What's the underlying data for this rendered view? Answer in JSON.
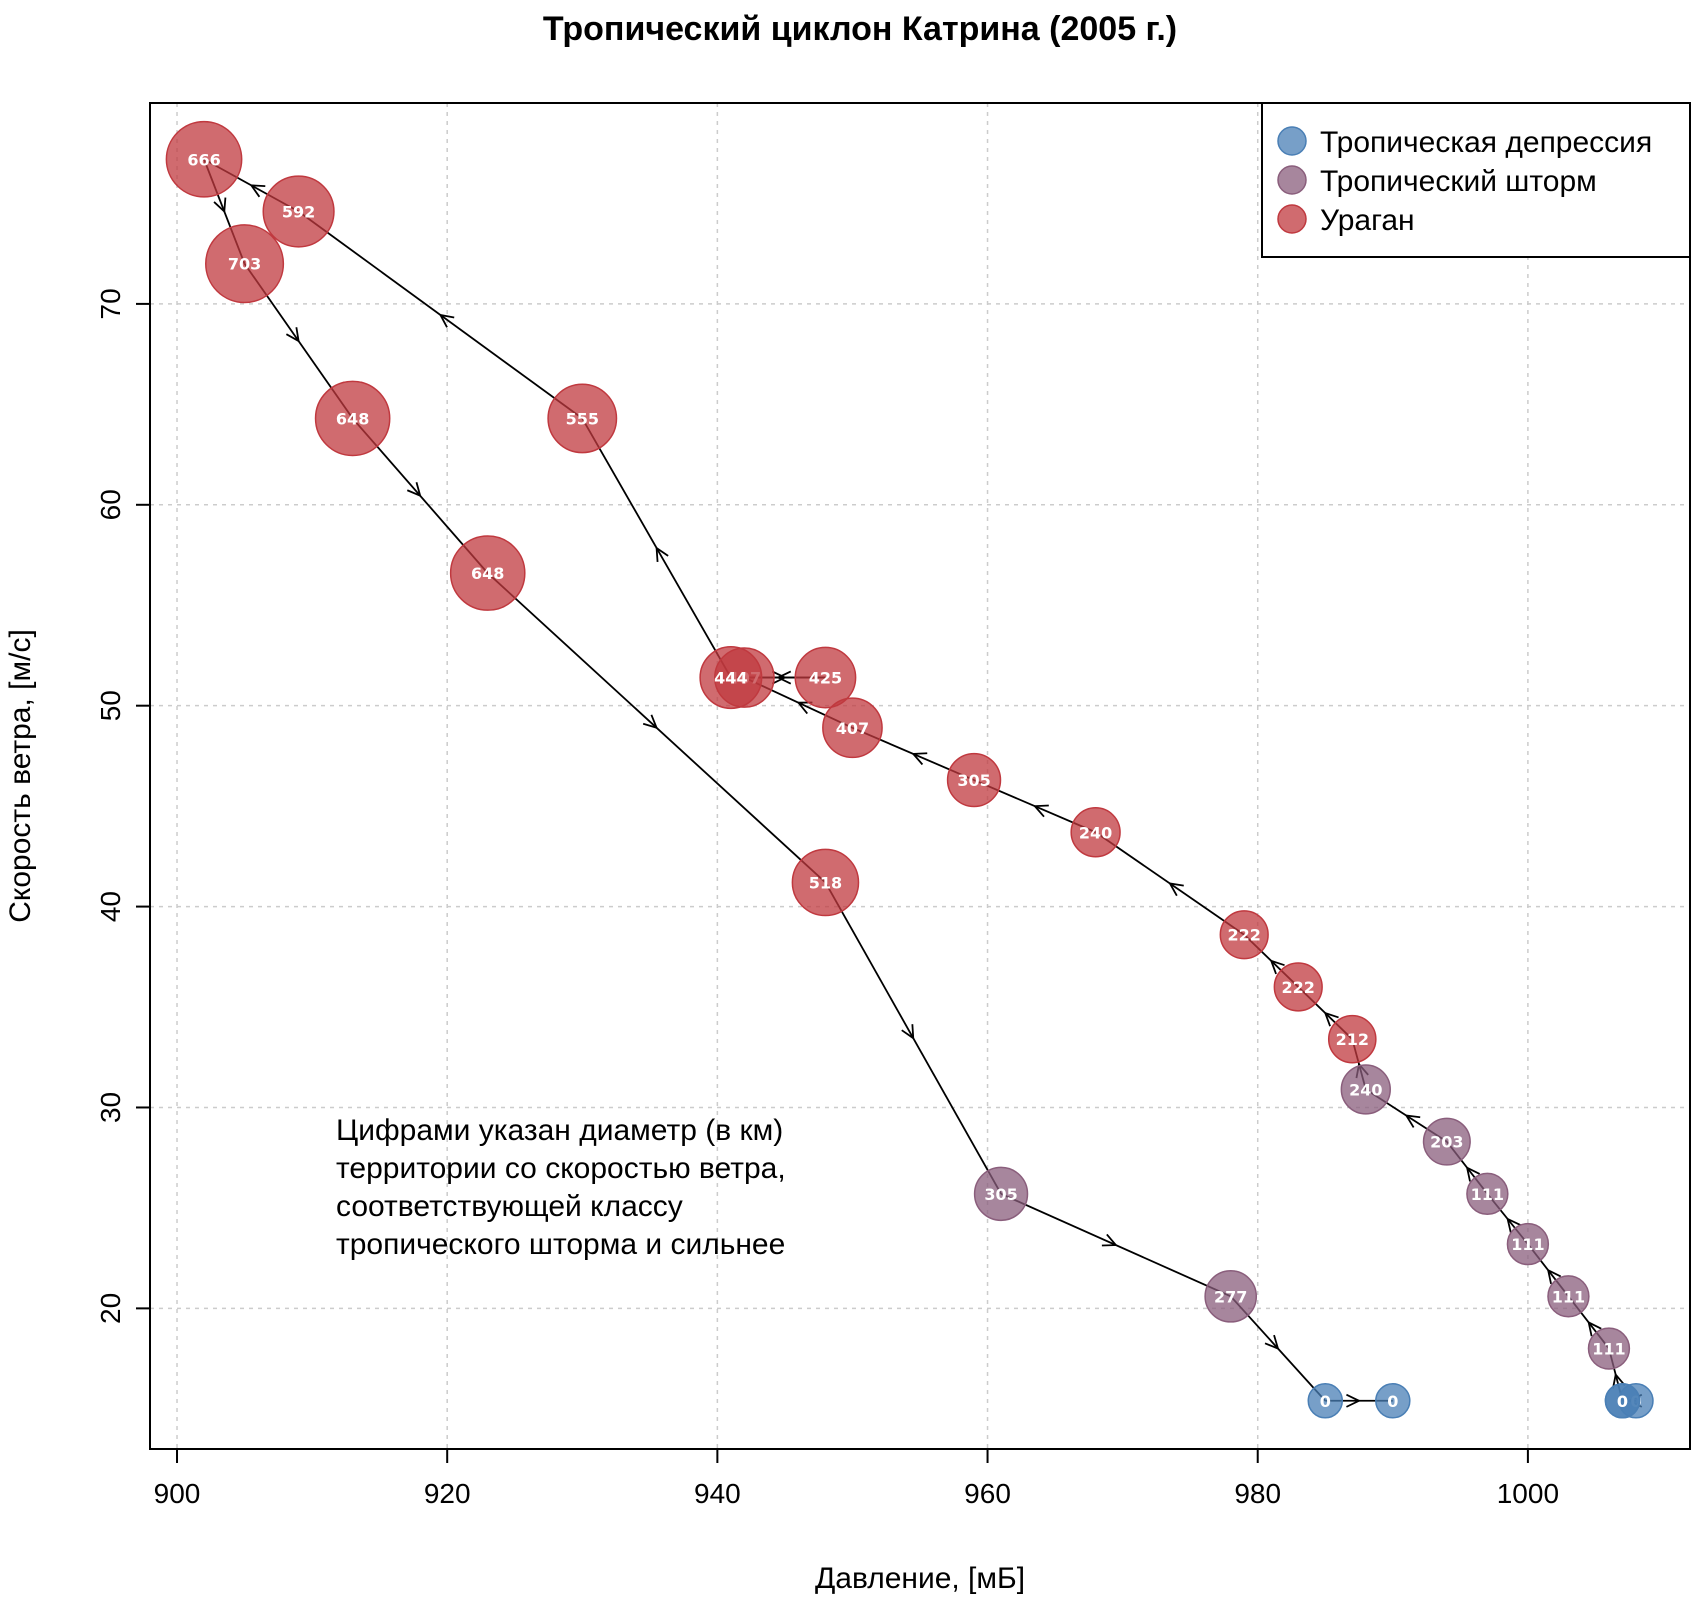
{
  "chart_data": {
    "type": "scatter",
    "title": "Тропический циклон Катрина (2005 г.)",
    "xlabel": "Давление, [мБ]",
    "ylabel": "Скорость ветра, [м/с]",
    "xlim": [
      898,
      1012
    ],
    "ylim": [
      13,
      80
    ],
    "xticks": [
      900,
      920,
      940,
      960,
      980,
      1000
    ],
    "yticks": [
      20,
      30,
      40,
      50,
      60,
      70
    ],
    "grid": true,
    "legend_position": "top-right",
    "annotation": [
      "Цифрами указан диаметр (в км)",
      "территории со скоростью ветра,",
      "соответствующей классу",
      "тропического шторма и сильнее"
    ],
    "categories": [
      {
        "name": "Тропическая депрессия",
        "color": "#4a7fb5"
      },
      {
        "name": "Тропический шторм",
        "color": "#8a5e7c"
      },
      {
        "name": "Ураган",
        "color": "#c0393f"
      }
    ],
    "track": [
      {
        "pressure": 1008,
        "wind": 15.4,
        "diameter": 0,
        "category": 0
      },
      {
        "pressure": 1007,
        "wind": 15.4,
        "diameter": 0,
        "category": 0
      },
      {
        "pressure": 1007,
        "wind": 15.4,
        "diameter": 0,
        "category": 0
      },
      {
        "pressure": 1006,
        "wind": 18.0,
        "diameter": 111,
        "category": 1
      },
      {
        "pressure": 1003,
        "wind": 20.6,
        "diameter": 111,
        "category": 1
      },
      {
        "pressure": 1000,
        "wind": 23.2,
        "diameter": 111,
        "category": 1
      },
      {
        "pressure": 997,
        "wind": 25.7,
        "diameter": 111,
        "category": 1
      },
      {
        "pressure": 994,
        "wind": 28.3,
        "diameter": 203,
        "category": 1
      },
      {
        "pressure": 988,
        "wind": 30.9,
        "diameter": 240,
        "category": 1
      },
      {
        "pressure": 987,
        "wind": 33.4,
        "diameter": 212,
        "category": 2
      },
      {
        "pressure": 983,
        "wind": 36.0,
        "diameter": 222,
        "category": 2
      },
      {
        "pressure": 979,
        "wind": 38.6,
        "diameter": 222,
        "category": 2
      },
      {
        "pressure": 968,
        "wind": 43.7,
        "diameter": 240,
        "category": 2
      },
      {
        "pressure": 959,
        "wind": 46.3,
        "diameter": 305,
        "category": 2
      },
      {
        "pressure": 950,
        "wind": 48.9,
        "diameter": 407,
        "category": 2
      },
      {
        "pressure": 942,
        "wind": 51.4,
        "diameter": 407,
        "category": 2
      },
      {
        "pressure": 948,
        "wind": 51.4,
        "diameter": 425,
        "category": 2
      },
      {
        "pressure": 941,
        "wind": 51.4,
        "diameter": 444,
        "category": 2
      },
      {
        "pressure": 930,
        "wind": 64.3,
        "diameter": 555,
        "category": 2
      },
      {
        "pressure": 909,
        "wind": 74.6,
        "diameter": 592,
        "category": 2
      },
      {
        "pressure": 902,
        "wind": 77.2,
        "diameter": 666,
        "category": 2
      },
      {
        "pressure": 905,
        "wind": 72.0,
        "diameter": 703,
        "category": 2
      },
      {
        "pressure": 913,
        "wind": 64.3,
        "diameter": 648,
        "category": 2
      },
      {
        "pressure": 923,
        "wind": 56.6,
        "diameter": 648,
        "category": 2
      },
      {
        "pressure": 948,
        "wind": 41.2,
        "diameter": 518,
        "category": 2
      },
      {
        "pressure": 961,
        "wind": 25.7,
        "diameter": 305,
        "category": 1
      },
      {
        "pressure": 978,
        "wind": 20.6,
        "diameter": 277,
        "category": 1
      },
      {
        "pressure": 985,
        "wind": 15.4,
        "diameter": 0,
        "category": 0
      },
      {
        "pressure": 990,
        "wind": 15.4,
        "diameter": 0,
        "category": 0
      }
    ]
  }
}
